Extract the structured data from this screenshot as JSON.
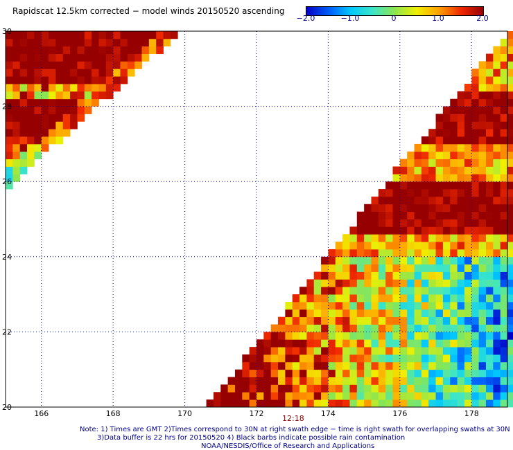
{
  "title": "Rapidscat 12.5km corrected − model winds 20150520 ascending",
  "colorbar": {
    "tick_labels": [
      "−2.0",
      "−1.0",
      "0",
      "1.0",
      "2.0"
    ],
    "min": -2.0,
    "max": 2.0
  },
  "axes": {
    "x_ticks": [
      "166",
      "168",
      "170",
      "172",
      "174",
      "176",
      "178"
    ],
    "y_ticks": [
      "30",
      "28",
      "26",
      "24",
      "22",
      "20"
    ],
    "x_range": [
      165.0,
      179.0
    ],
    "y_range": [
      20.0,
      30.0
    ],
    "grid": true
  },
  "swath_time": "12:18",
  "notes": [
    "Note: 1) Times are GMT 2)Times correspond to 30N at right swath edge − time is right swath for overlapping swaths at 30N",
    "3)Data buffer is 22 hrs for 20150520 4) Black barbs indicate possible rain contamination",
    "NOAA/NESDIS/Office of Research and Applications"
  ],
  "colors": {
    "text_blue": "#00008b",
    "time_red": "#8b0000",
    "grid": "#00008b"
  }
}
